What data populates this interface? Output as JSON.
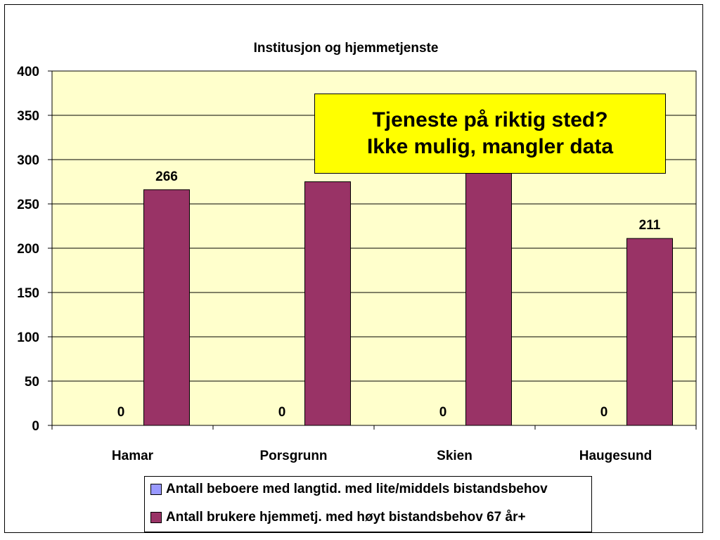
{
  "chart_data": {
    "type": "bar",
    "title": "Institusjon og hjemmetjenste",
    "categories": [
      "Hamar",
      "Porsgrunn",
      "Skien",
      "Haugesund"
    ],
    "series": [
      {
        "name": "Antall beboere med langtid. med lite/middels bistandsbehov",
        "values": [
          0,
          0,
          0,
          0
        ],
        "color": "#9999ff",
        "labels": [
          "0",
          "0",
          "0",
          "0"
        ]
      },
      {
        "name": "Antall brukere hjemmetj. med høyt bistandsbehov 67 år+",
        "values": [
          266,
          275,
          297,
          211
        ],
        "color": "#993366",
        "labels": [
          "266",
          "275",
          "",
          "211"
        ]
      }
    ],
    "ylim": [
      0,
      400
    ],
    "yticks": [
      0,
      50,
      100,
      150,
      200,
      250,
      300,
      350,
      400
    ],
    "plot_background": "#ffffcc",
    "grid": true,
    "legend_position": "bottom"
  },
  "callout": {
    "line1": "Tjeneste på riktig sted?",
    "line2": "Ikke mulig, mangler data",
    "background": "#ffff00"
  }
}
